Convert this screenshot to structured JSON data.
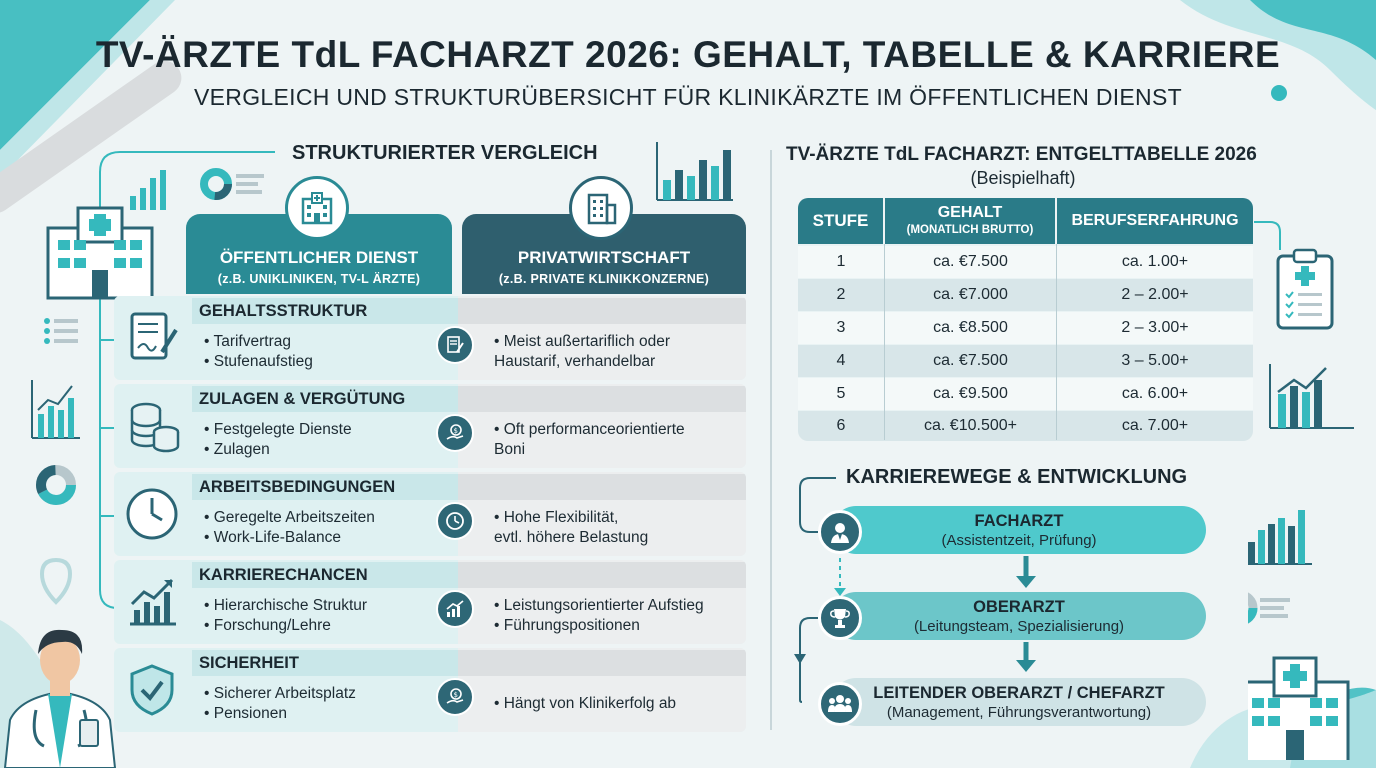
{
  "title": "TV-ÄRZTE TdL FACHARZT 2026: GEHALT, TABELLE & KARRIERE",
  "subtitle": "VERGLEICH UND STRUKTURÜBERSICHT FÜR KLINIKÄRZTE IM ÖFFENTLICHEN DIENST",
  "comparison": {
    "heading": "STRUKTURIERTER VERGLEICH",
    "left_title": "ÖFFENTLICHER DIENST",
    "left_subtitle": "(z.B. UNIKLINIKEN, TV-L ÄRZTE)",
    "right_title": "PRIVATWIRTSCHAFT",
    "right_subtitle": "(z.B. PRIVATE KLINIKKONZERNE)",
    "rows": [
      {
        "label": "GEHALTSSTRUKTUR",
        "left": [
          "• Tarifvertrag",
          "• Stufenaufstieg"
        ],
        "right": [
          "• Meist außertariflich oder",
          "   Haustarif, verhandelbar"
        ],
        "icon_left": "document-sign-icon",
        "icon_mid": "contract-icon"
      },
      {
        "label": "ZULAGEN & VERGÜTUNG",
        "left": [
          "• Festgelegte Dienste",
          "• Zulagen"
        ],
        "right": [
          "• Oft performanceorientierte",
          "   Boni"
        ],
        "icon_left": "coins-icon",
        "icon_mid": "money-hand-icon"
      },
      {
        "label": "ARBEITSBEDINGUNGEN",
        "left": [
          "• Geregelte Arbeitszeiten",
          "• Work-Life-Balance"
        ],
        "right": [
          "• Hohe Flexibilität,",
          "   evtl. höhere Belastung"
        ],
        "icon_left": "clock-icon",
        "icon_mid": "clock-icon"
      },
      {
        "label": "KARRIERECHANCEN",
        "left": [
          "• Hierarchische Struktur",
          "• Forschung/Lehre"
        ],
        "right": [
          "• Leistungsorientierter Aufstieg",
          "• Führungspositionen"
        ],
        "icon_left": "growth-chart-icon",
        "icon_mid": "growth-chart-icon"
      },
      {
        "label": "SICHERHEIT",
        "left": [
          "• Sicherer Arbeitsplatz",
          "• Pensionen"
        ],
        "right": [
          "• Hängt von Klinikerfolg ab"
        ],
        "icon_left": "shield-check-icon",
        "icon_mid": "money-hand-icon"
      }
    ]
  },
  "salary_table": {
    "heading": "TV-ÄRZTE TdL FACHARZT: ENTGELTTABELLE 2026",
    "subheading": "(Beispielhaft)",
    "col_stufe": "STUFE",
    "col_gehalt": "GEHALT",
    "col_gehalt_sub": "(MONATLICH BRUTTO)",
    "col_erfahrung": "BERUFSERFAHRUNG",
    "rows": [
      {
        "stufe": "1",
        "gehalt": "ca. €7.500",
        "erfahrung": "ca. 1.00+"
      },
      {
        "stufe": "2",
        "gehalt": "ca. €7.000",
        "erfahrung": "2 – 2.00+"
      },
      {
        "stufe": "3",
        "gehalt": "ca. €8.500",
        "erfahrung": "2 – 3.00+"
      },
      {
        "stufe": "4",
        "gehalt": "ca. €7.500",
        "erfahrung": "3 – 5.00+"
      },
      {
        "stufe": "5",
        "gehalt": "ca. €9.500",
        "erfahrung": "ca. 6.00+"
      },
      {
        "stufe": "6",
        "gehalt": "ca. €10.500+",
        "erfahrung": "ca. 7.00+"
      }
    ]
  },
  "career": {
    "heading": "KARRIEREWEGE & ENTWICKLUNG",
    "steps": [
      {
        "title": "FACHARZT",
        "detail": "(Assistentzeit, Prüfung)",
        "icon": "doctor-icon"
      },
      {
        "title": "OBERARZT",
        "detail": "(Leitungsteam, Spezialisierung)",
        "icon": "trophy-icon"
      },
      {
        "title": "LEITENDER OBERARZT / CHEFARZT",
        "detail": "(Management, Führungsverantwortung)",
        "icon": "team-icon"
      }
    ]
  },
  "colors": {
    "teal": "#35b9bd",
    "dark_teal": "#2b6575",
    "table_head": "#2a7b88"
  }
}
